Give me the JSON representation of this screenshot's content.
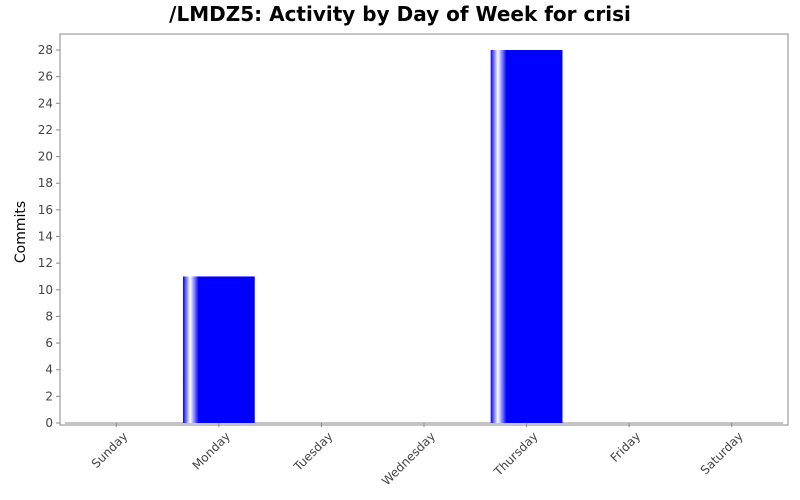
{
  "chart_data": {
    "type": "bar",
    "title": "/LMDZ5: Activity by Day of Week for crisi",
    "xlabel": "",
    "ylabel": "Commits",
    "categories": [
      "Sunday",
      "Monday",
      "Tuesday",
      "Wednesday",
      "Thursday",
      "Friday",
      "Saturday"
    ],
    "series": [
      {
        "values": [
          0,
          11,
          0,
          0,
          28,
          0,
          0
        ]
      }
    ],
    "ylim": [
      0,
      29.2
    ],
    "yticks": [
      0,
      2,
      4,
      6,
      8,
      10,
      12,
      14,
      16,
      18,
      20,
      22,
      24,
      26,
      28
    ],
    "grid": false,
    "legend": "none",
    "bar_color": "#0000ff",
    "bar_highlight": "#ffffff"
  }
}
